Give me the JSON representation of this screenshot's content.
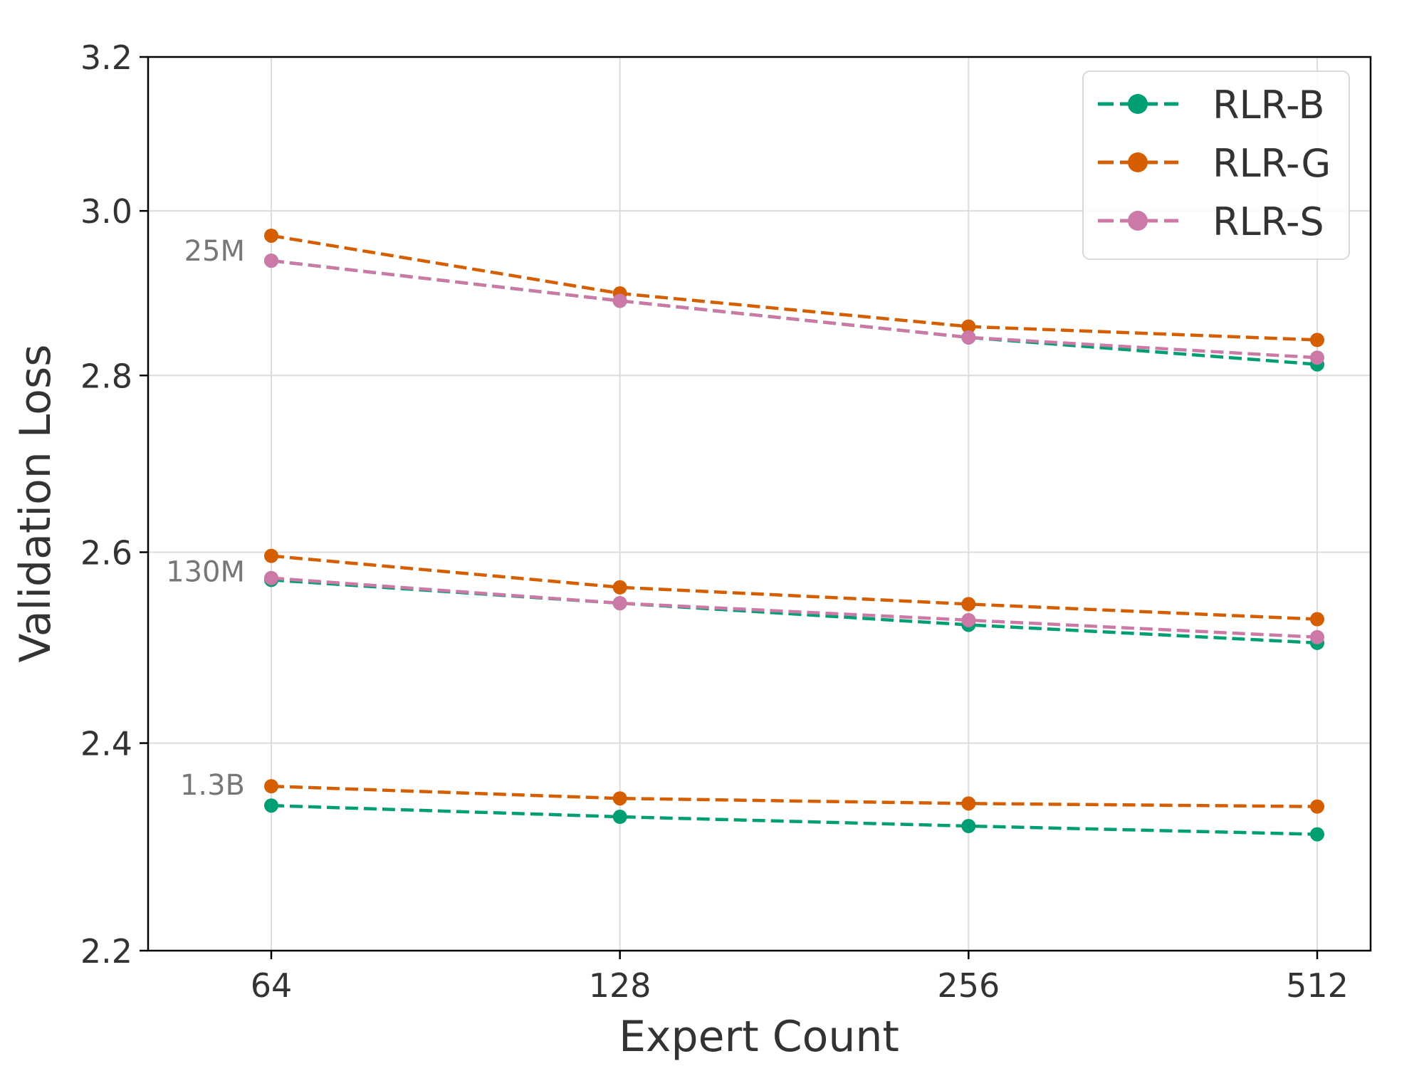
{
  "chart_data": {
    "type": "line",
    "xlabel": "Expert Count",
    "ylabel": "Validation Loss",
    "x": [
      64,
      128,
      256,
      512
    ],
    "x_tick_labels": [
      "64",
      "128",
      "256",
      "512"
    ],
    "x_scale": "log2",
    "y_scale": "log",
    "ylim": [
      2.2,
      3.2
    ],
    "y_ticks": [
      2.2,
      2.4,
      2.6,
      2.8,
      3.0,
      3.2
    ],
    "y_tick_labels": [
      "2.2",
      "2.4",
      "2.6",
      "2.8",
      "3.0",
      "3.2"
    ],
    "grid": true,
    "legend_position": "top-right",
    "annotations": [
      {
        "text": "25M",
        "y": 2.94
      },
      {
        "text": "130M",
        "y": 2.57
      },
      {
        "text": "1.3B",
        "y": 2.35
      }
    ],
    "series": [
      {
        "name": "RLR-B",
        "color": "#009e73",
        "groups": [
          [
            2.938,
            2.889,
            2.845,
            2.813
          ],
          [
            2.57,
            2.545,
            2.522,
            2.503
          ],
          [
            2.338,
            2.327,
            2.318,
            2.31
          ]
        ]
      },
      {
        "name": "RLR-G",
        "color": "#d55e00",
        "groups": [
          [
            2.969,
            2.898,
            2.858,
            2.842
          ],
          [
            2.596,
            2.562,
            2.544,
            2.528
          ],
          [
            2.357,
            2.345,
            2.34,
            2.337
          ]
        ]
      },
      {
        "name": "RLR-S",
        "color": "#cc79a7",
        "groups": [
          [
            2.938,
            2.889,
            2.845,
            2.821
          ],
          [
            2.572,
            2.545,
            2.527,
            2.509
          ],
          null
        ]
      }
    ]
  }
}
